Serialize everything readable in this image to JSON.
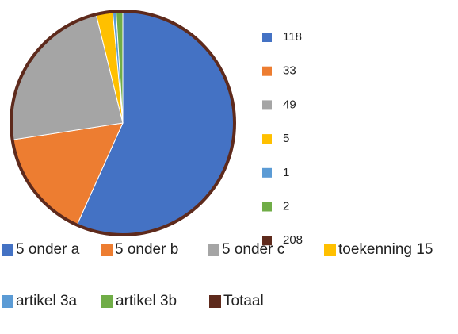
{
  "chart_data": {
    "type": "pie",
    "categories": [
      "5 onder a",
      "5 onder b",
      "5 onder c",
      "toekenning 15",
      "artikel 3a",
      "artikel 3b",
      "Totaal"
    ],
    "values": [
      118,
      33,
      49,
      5,
      1,
      2,
      208
    ],
    "colors": [
      "#4472c4",
      "#ed7d31",
      "#a5a5a5",
      "#ffc000",
      "#5b9bd5",
      "#70ad47",
      "#5e2a1c"
    ]
  }
}
